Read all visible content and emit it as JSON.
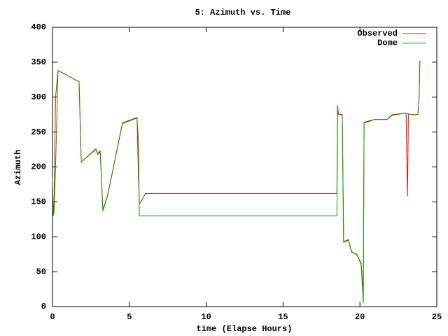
{
  "chart_data": {
    "type": "line",
    "title": "5: Azimuth vs. Time",
    "x_label": "time (Elapse Hours)",
    "y_label": "Azimuth",
    "legend": "top-right",
    "x": [
      0,
      0.05,
      0.1,
      0.2,
      0.36,
      1.73,
      1.87,
      2.82,
      2.95,
      3.1,
      3.28,
      3.6,
      4.55,
      5.5,
      5.6,
      5.65,
      5.75,
      6.05,
      18.45,
      18.5,
      18.55,
      18.6,
      18.85,
      18.94,
      19.25,
      19.45,
      19.8,
      20.08,
      20.22,
      20.27,
      20.6,
      20.95,
      21.77,
      22.1,
      23.0,
      23.1,
      23.15,
      23.3,
      23.77,
      23.85,
      23.9
    ],
    "series": [
      {
        "name": "Observed",
        "color": "#ff0000",
        "values": [
          185,
          132,
          150,
          300,
          338,
          322,
          207,
          226,
          219,
          223,
          138,
          161,
          263,
          271,
          180,
          147,
          150,
          162,
          162,
          162,
          288,
          276,
          275,
          93,
          96,
          79,
          74,
          62,
          20,
          264,
          266,
          268,
          268,
          275,
          277,
          158,
          276,
          275,
          275,
          300,
          352
        ]
      },
      {
        "name": "Dome",
        "color": "#00a000",
        "values": [
          183,
          130,
          135,
          200,
          338,
          322,
          207,
          225,
          218,
          222,
          137,
          160,
          262,
          270,
          235,
          130,
          130,
          130,
          130,
          130,
          275,
          275,
          275,
          92,
          95,
          78,
          75,
          60,
          5,
          263,
          265,
          268,
          268,
          274,
          277,
          277,
          276,
          275,
          275,
          300,
          352
        ]
      }
    ],
    "xlim": [
      0,
      25
    ],
    "xticks": [
      0,
      5,
      10,
      15,
      20,
      25
    ],
    "ylim": [
      0,
      400
    ],
    "yticks": [
      0,
      50,
      100,
      150,
      200,
      250,
      300,
      350,
      400
    ],
    "grid": false
  }
}
